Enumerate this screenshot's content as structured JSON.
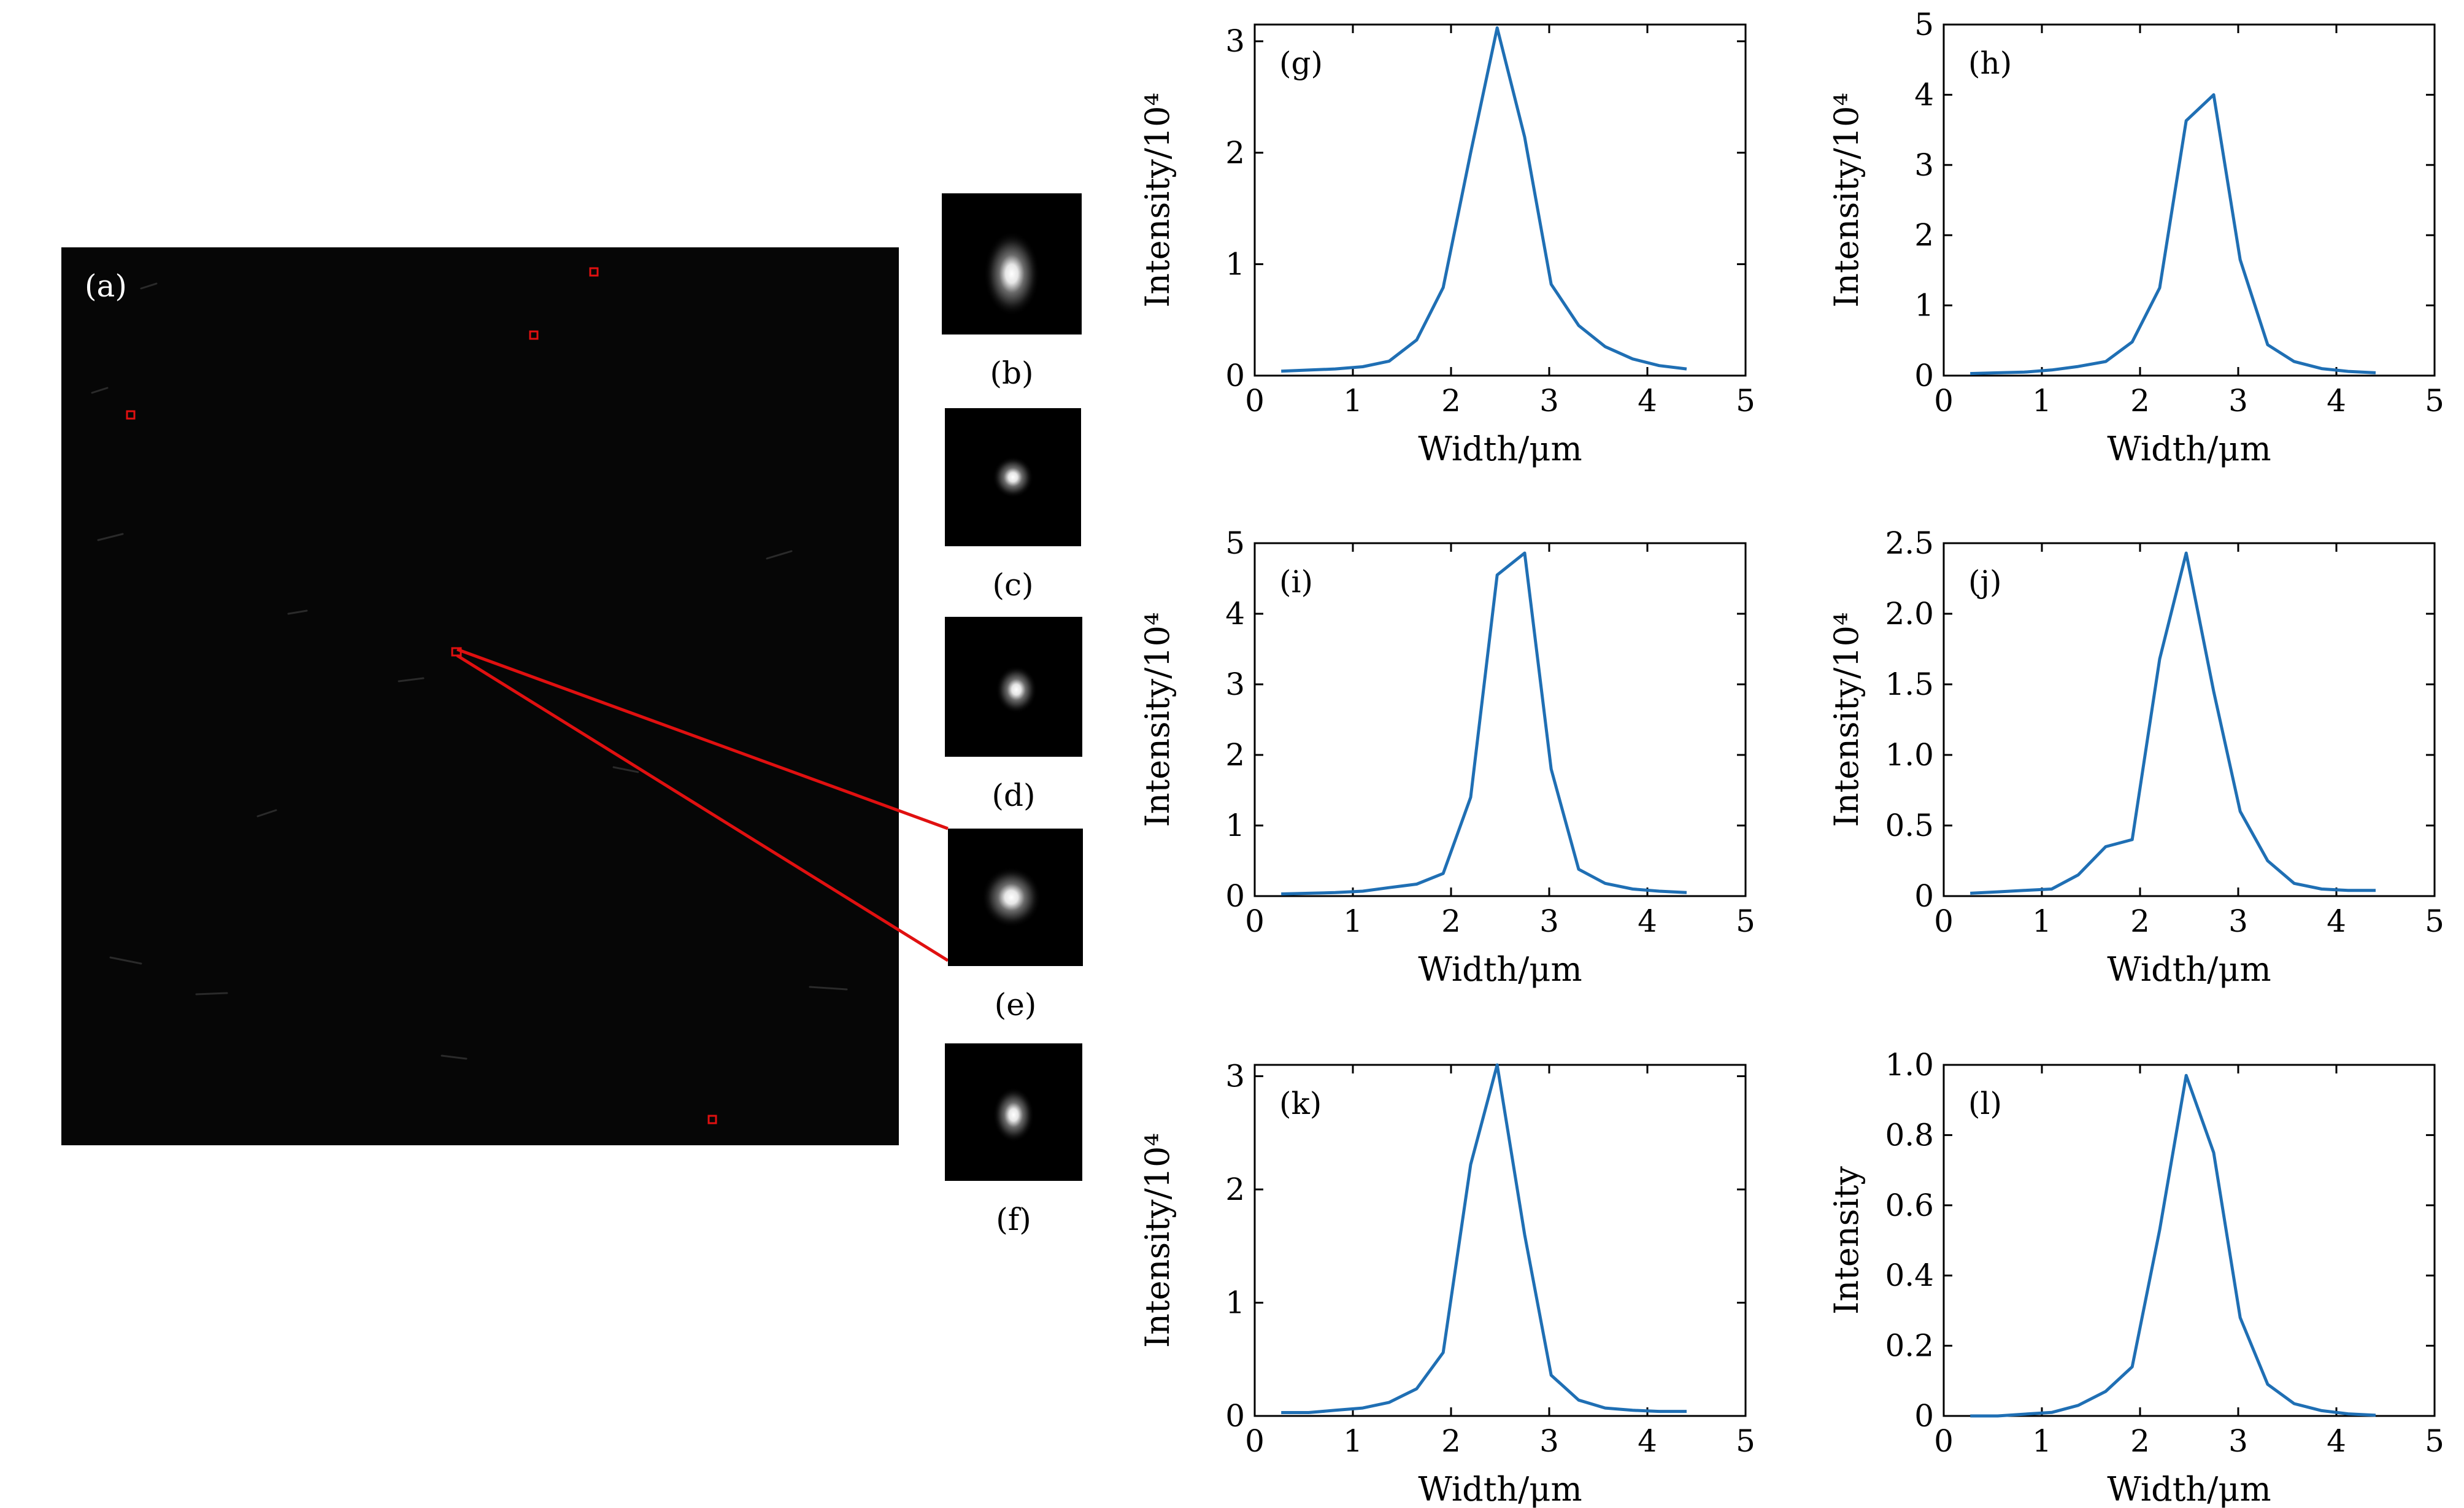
{
  "figure": {
    "panel_a_label": "(a)",
    "thumbnails": [
      {
        "label": "(b)"
      },
      {
        "label": "(c)"
      },
      {
        "label": "(d)"
      },
      {
        "label": "(e)"
      },
      {
        "label": "(f)"
      }
    ]
  },
  "colors": {
    "line": "#1f6fb4",
    "marker": "#e01010",
    "image_bg": "#060606",
    "axis": "#000000"
  },
  "chart_data": [
    {
      "type": "line",
      "panel": "(g)",
      "xlabel": "Width/μm",
      "ylabel": "Intensity/10⁴",
      "xlim": [
        0,
        5
      ],
      "ylim": [
        0,
        3.15
      ],
      "xticks": [
        "0",
        "1",
        "2",
        "3",
        "4",
        "5"
      ],
      "yticks": [
        {
          "v": 0,
          "t": "0"
        },
        {
          "v": 1,
          "t": "1"
        },
        {
          "v": 2,
          "t": "2"
        },
        {
          "v": 3,
          "t": "3"
        }
      ],
      "x": [
        0.27,
        0.55,
        0.82,
        1.1,
        1.37,
        1.65,
        1.92,
        2.2,
        2.47,
        2.75,
        3.02,
        3.3,
        3.57,
        3.85,
        4.12,
        4.4
      ],
      "y": [
        0.04,
        0.05,
        0.06,
        0.08,
        0.13,
        0.32,
        0.79,
        2.0,
        3.12,
        2.14,
        0.82,
        0.45,
        0.26,
        0.15,
        0.09,
        0.06
      ]
    },
    {
      "type": "line",
      "panel": "(h)",
      "xlabel": "Width/μm",
      "ylabel": "Intensity/10⁴",
      "xlim": [
        0,
        5
      ],
      "ylim": [
        0,
        5
      ],
      "xticks": [
        "0",
        "1",
        "2",
        "3",
        "4",
        "5"
      ],
      "yticks": [
        {
          "v": 0,
          "t": "0"
        },
        {
          "v": 1,
          "t": "1"
        },
        {
          "v": 2,
          "t": "2"
        },
        {
          "v": 3,
          "t": "3"
        },
        {
          "v": 4,
          "t": "4"
        },
        {
          "v": 5,
          "t": "5"
        }
      ],
      "x": [
        0.27,
        0.55,
        0.82,
        1.1,
        1.37,
        1.65,
        1.92,
        2.2,
        2.47,
        2.75,
        3.02,
        3.3,
        3.57,
        3.85,
        4.12,
        4.4
      ],
      "y": [
        0.03,
        0.04,
        0.05,
        0.08,
        0.13,
        0.2,
        0.48,
        1.25,
        3.63,
        4.0,
        1.65,
        0.44,
        0.2,
        0.1,
        0.06,
        0.04
      ]
    },
    {
      "type": "line",
      "panel": "(i)",
      "xlabel": "Width/μm",
      "ylabel": "Intensity/10⁴",
      "xlim": [
        0,
        5
      ],
      "ylim": [
        0,
        5
      ],
      "xticks": [
        "0",
        "1",
        "2",
        "3",
        "4",
        "5"
      ],
      "yticks": [
        {
          "v": 0,
          "t": "0"
        },
        {
          "v": 1,
          "t": "1"
        },
        {
          "v": 2,
          "t": "2"
        },
        {
          "v": 3,
          "t": "3"
        },
        {
          "v": 4,
          "t": "4"
        },
        {
          "v": 5,
          "t": "5"
        }
      ],
      "x": [
        0.27,
        0.55,
        0.82,
        1.1,
        1.37,
        1.65,
        1.92,
        2.2,
        2.47,
        2.75,
        3.02,
        3.3,
        3.57,
        3.85,
        4.12,
        4.4
      ],
      "y": [
        0.03,
        0.04,
        0.05,
        0.07,
        0.12,
        0.17,
        0.32,
        1.4,
        4.55,
        4.86,
        1.8,
        0.38,
        0.18,
        0.1,
        0.07,
        0.05
      ]
    },
    {
      "type": "line",
      "panel": "(j)",
      "xlabel": "Width/μm",
      "ylabel": "Intensity/10⁴",
      "xlim": [
        0,
        5
      ],
      "ylim": [
        0,
        2.5
      ],
      "xticks": [
        "0",
        "1",
        "2",
        "3",
        "4",
        "5"
      ],
      "yticks": [
        {
          "v": 0,
          "t": "0"
        },
        {
          "v": 0.5,
          "t": "0.5"
        },
        {
          "v": 1,
          "t": "1.0"
        },
        {
          "v": 1.5,
          "t": "1.5"
        },
        {
          "v": 2,
          "t": "2.0"
        },
        {
          "v": 2.5,
          "t": "2.5"
        }
      ],
      "x": [
        0.27,
        0.55,
        0.82,
        1.1,
        1.37,
        1.65,
        1.92,
        2.2,
        2.47,
        2.75,
        3.02,
        3.3,
        3.57,
        3.85,
        4.12,
        4.4
      ],
      "y": [
        0.02,
        0.03,
        0.04,
        0.05,
        0.15,
        0.35,
        0.4,
        1.68,
        2.43,
        1.45,
        0.6,
        0.25,
        0.09,
        0.05,
        0.04,
        0.04
      ]
    },
    {
      "type": "line",
      "panel": "(k)",
      "xlabel": "Width/μm",
      "ylabel": "Intensity/10⁴",
      "xlim": [
        0,
        5
      ],
      "ylim": [
        0,
        3.1
      ],
      "xticks": [
        "0",
        "1",
        "2",
        "3",
        "4",
        "5"
      ],
      "yticks": [
        {
          "v": 0,
          "t": "0"
        },
        {
          "v": 1,
          "t": "1"
        },
        {
          "v": 2,
          "t": "2"
        },
        {
          "v": 3,
          "t": "3"
        }
      ],
      "x": [
        0.27,
        0.55,
        0.82,
        1.1,
        1.37,
        1.65,
        1.92,
        2.2,
        2.47,
        2.75,
        3.02,
        3.3,
        3.57,
        3.85,
        4.12,
        4.4
      ],
      "y": [
        0.03,
        0.03,
        0.05,
        0.07,
        0.12,
        0.24,
        0.56,
        2.22,
        3.1,
        1.6,
        0.36,
        0.14,
        0.07,
        0.05,
        0.04,
        0.04
      ]
    },
    {
      "type": "line",
      "panel": "(l)",
      "xlabel": "Width/μm",
      "ylabel": "Intensity",
      "xlim": [
        0,
        5
      ],
      "ylim": [
        0,
        1.0
      ],
      "xticks": [
        "0",
        "1",
        "2",
        "3",
        "4",
        "5"
      ],
      "yticks": [
        {
          "v": 0,
          "t": "0"
        },
        {
          "v": 0.2,
          "t": "0.2"
        },
        {
          "v": 0.4,
          "t": "0.4"
        },
        {
          "v": 0.6,
          "t": "0.6"
        },
        {
          "v": 0.8,
          "t": "0.8"
        },
        {
          "v": 1.0,
          "t": "1.0"
        }
      ],
      "x": [
        0.27,
        0.55,
        0.82,
        1.1,
        1.37,
        1.65,
        1.92,
        2.2,
        2.47,
        2.75,
        3.02,
        3.3,
        3.57,
        3.85,
        4.12,
        4.4
      ],
      "y": [
        0.0,
        0.0,
        0.005,
        0.01,
        0.03,
        0.07,
        0.14,
        0.53,
        0.97,
        0.75,
        0.28,
        0.09,
        0.035,
        0.015,
        0.006,
        0.002
      ]
    }
  ]
}
